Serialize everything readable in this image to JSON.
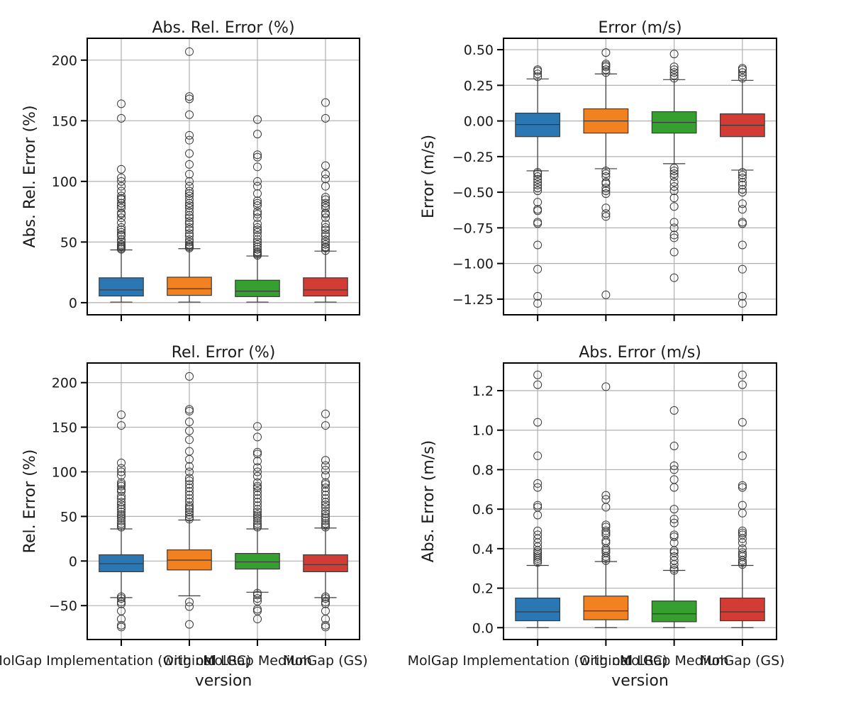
{
  "figure": {
    "xlabel": "version",
    "categories": [
      "MolGap Implementation (with old LRC)",
      "Original",
      "MolGap Medium",
      "MolGap (GS)"
    ],
    "colors": [
      "#2a77b4",
      "#f28220",
      "#35a02f",
      "#d33b35"
    ]
  },
  "chart_data": [
    {
      "type": "box",
      "title": "Abs. Rel. Error (%)",
      "ylabel": "Abs. Rel. Error (%)",
      "ylim": [
        -10,
        218
      ],
      "yticks": [
        {
          "v": 0,
          "t": "0"
        },
        {
          "v": 50,
          "t": "50"
        },
        {
          "v": 100,
          "t": "100"
        },
        {
          "v": 150,
          "t": "150"
        },
        {
          "v": 200,
          "t": "200"
        }
      ],
      "boxes": [
        {
          "whislo": 0.5,
          "q1": 5.5,
          "med": 10.5,
          "q3": 20.5,
          "whishi": 43.5,
          "fliers": [
            44,
            45,
            46,
            47,
            48,
            50,
            52,
            55,
            56,
            58,
            60,
            62,
            66,
            70,
            73,
            74,
            78,
            80,
            82,
            85,
            86,
            88,
            92,
            96,
            100,
            103,
            110,
            152,
            164
          ]
        },
        {
          "whislo": 0.5,
          "q1": 6,
          "med": 11.5,
          "q3": 21,
          "whishi": 44.5,
          "fliers": [
            45,
            46,
            47,
            48,
            50,
            52,
            55,
            57,
            60,
            62,
            65,
            67,
            70,
            72,
            75,
            78,
            80,
            82,
            85,
            88,
            90,
            92,
            96,
            100,
            106,
            114,
            123,
            134,
            138,
            155,
            168,
            170,
            207
          ]
        },
        {
          "whislo": 0.5,
          "q1": 5,
          "med": 9.5,
          "q3": 18.5,
          "whishi": 38.5,
          "fliers": [
            39,
            40,
            41,
            42,
            44,
            46,
            48,
            50,
            52,
            55,
            58,
            60,
            62,
            65,
            70,
            73,
            75,
            80,
            82,
            84,
            90,
            96,
            100,
            112,
            120,
            122,
            139,
            151
          ]
        },
        {
          "whislo": 0.5,
          "q1": 5.5,
          "med": 10.5,
          "q3": 20.5,
          "whishi": 42.5,
          "fliers": [
            43,
            45,
            46,
            48,
            50,
            52,
            55,
            57,
            60,
            62,
            65,
            70,
            73,
            74,
            78,
            80,
            82,
            85,
            87,
            96,
            102,
            106,
            113,
            152,
            165
          ]
        }
      ]
    },
    {
      "type": "box",
      "title": "Error (m/s)",
      "ylabel": "Error (m/s)",
      "ylim": [
        -1.36,
        0.58
      ],
      "yticks": [
        {
          "v": -1.25,
          "t": "−1.25"
        },
        {
          "v": -1.0,
          "t": "−1.00"
        },
        {
          "v": -0.75,
          "t": "−0.75"
        },
        {
          "v": -0.5,
          "t": "−0.50"
        },
        {
          "v": -0.25,
          "t": "−0.25"
        },
        {
          "v": 0,
          "t": "0.00"
        },
        {
          "v": 0.25,
          "t": "0.25"
        },
        {
          "v": 0.5,
          "t": "0.50"
        }
      ],
      "boxes": [
        {
          "whislo": -0.35,
          "q1": -0.11,
          "med": -0.025,
          "q3": 0.055,
          "whishi": 0.295,
          "fliers": [
            0.31,
            0.33,
            0.35,
            0.36,
            -0.36,
            -0.37,
            -0.39,
            -0.41,
            -0.43,
            -0.45,
            -0.47,
            -0.49,
            -0.57,
            -0.62,
            -0.63,
            -0.71,
            -0.72,
            -0.87,
            -1.04,
            -1.23,
            -1.28
          ]
        },
        {
          "whislo": -0.335,
          "q1": -0.085,
          "med": 0.0,
          "q3": 0.085,
          "whishi": 0.33,
          "fliers": [
            0.34,
            0.36,
            0.38,
            0.39,
            0.4,
            0.48,
            -0.35,
            -0.37,
            -0.39,
            -0.43,
            -0.44,
            -0.47,
            -0.49,
            -0.51,
            -0.61,
            -0.65,
            -0.67,
            -1.22
          ]
        },
        {
          "whislo": -0.3,
          "q1": -0.085,
          "med": -0.01,
          "q3": 0.065,
          "whishi": 0.29,
          "fliers": [
            0.3,
            0.32,
            0.34,
            0.36,
            0.38,
            0.47,
            -0.33,
            -0.35,
            -0.37,
            -0.39,
            -0.43,
            -0.46,
            -0.49,
            -0.54,
            -0.6,
            -0.71,
            -0.75,
            -0.8,
            -0.82,
            -0.92,
            -1.1
          ]
        },
        {
          "whislo": -0.345,
          "q1": -0.11,
          "med": -0.03,
          "q3": 0.05,
          "whishi": 0.285,
          "fliers": [
            0.3,
            0.32,
            0.34,
            0.36,
            0.37,
            -0.36,
            -0.38,
            -0.4,
            -0.43,
            -0.45,
            -0.48,
            -0.5,
            -0.58,
            -0.62,
            -0.71,
            -0.72,
            -0.87,
            -1.04,
            -1.23,
            -1.28
          ]
        }
      ]
    },
    {
      "type": "box",
      "title": "Rel. Error (%)",
      "ylabel": "Rel. Error (%)",
      "ylim": [
        -88,
        222
      ],
      "yticks": [
        {
          "v": -50,
          "t": "−50"
        },
        {
          "v": 0,
          "t": "0"
        },
        {
          "v": 50,
          "t": "50"
        },
        {
          "v": 100,
          "t": "100"
        },
        {
          "v": 150,
          "t": "150"
        },
        {
          "v": 200,
          "t": "200"
        }
      ],
      "boxes": [
        {
          "whislo": -41,
          "q1": -12,
          "med": -3,
          "q3": 7,
          "whishi": 36,
          "fliers": [
            38,
            40,
            42,
            45,
            48,
            50,
            52,
            55,
            58,
            60,
            63,
            66,
            70,
            73,
            78,
            80,
            84,
            86,
            88,
            96,
            100,
            104,
            110,
            152,
            164,
            -40,
            -42,
            -46,
            -48,
            -56,
            -65,
            -72,
            -74
          ]
        },
        {
          "whislo": -39,
          "q1": -10,
          "med": 1,
          "q3": 12.5,
          "whishi": 46,
          "fliers": [
            47,
            49,
            52,
            55,
            58,
            60,
            62,
            66,
            70,
            74,
            78,
            82,
            86,
            90,
            93,
            100,
            106,
            114,
            123,
            136,
            146,
            156,
            168,
            170,
            207,
            -46,
            -51,
            -71
          ]
        },
        {
          "whislo": -35,
          "q1": -9,
          "med": -1,
          "q3": 8.5,
          "whishi": 36,
          "fliers": [
            38,
            40,
            42,
            45,
            48,
            50,
            52,
            55,
            58,
            62,
            66,
            70,
            74,
            78,
            82,
            84,
            88,
            95,
            100,
            105,
            112,
            120,
            122,
            139,
            151,
            -36,
            -38,
            -42,
            -45,
            -54,
            -56,
            -65
          ]
        },
        {
          "whislo": -41,
          "q1": -12,
          "med": -4,
          "q3": 7,
          "whishi": 37,
          "fliers": [
            38,
            40,
            42,
            45,
            48,
            50,
            53,
            56,
            60,
            63,
            66,
            70,
            74,
            78,
            82,
            86,
            88,
            96,
            102,
            107,
            113,
            152,
            165,
            -40,
            -42,
            -46,
            -48,
            -56,
            -65,
            -72,
            -74
          ]
        }
      ]
    },
    {
      "type": "box",
      "title": "Abs. Error (m/s)",
      "ylabel": "Abs. Error (m/s)",
      "ylim": [
        -0.06,
        1.34
      ],
      "yticks": [
        {
          "v": 0,
          "t": "0.0"
        },
        {
          "v": 0.2,
          "t": "0.2"
        },
        {
          "v": 0.4,
          "t": "0.4"
        },
        {
          "v": 0.6,
          "t": "0.6"
        },
        {
          "v": 0.8,
          "t": "0.8"
        },
        {
          "v": 1.0,
          "t": "1.0"
        },
        {
          "v": 1.2,
          "t": "1.2"
        }
      ],
      "boxes": [
        {
          "whislo": 0.0,
          "q1": 0.035,
          "med": 0.08,
          "q3": 0.15,
          "whishi": 0.315,
          "fliers": [
            0.33,
            0.34,
            0.35,
            0.36,
            0.37,
            0.38,
            0.39,
            0.41,
            0.43,
            0.45,
            0.47,
            0.49,
            0.57,
            0.61,
            0.62,
            0.71,
            0.73,
            0.87,
            1.04,
            1.23,
            1.28
          ]
        },
        {
          "whislo": 0.0,
          "q1": 0.04,
          "med": 0.085,
          "q3": 0.16,
          "whishi": 0.335,
          "fliers": [
            0.34,
            0.35,
            0.36,
            0.38,
            0.39,
            0.4,
            0.43,
            0.44,
            0.47,
            0.48,
            0.49,
            0.51,
            0.52,
            0.61,
            0.65,
            0.67,
            1.22
          ]
        },
        {
          "whislo": 0.0,
          "q1": 0.03,
          "med": 0.07,
          "q3": 0.135,
          "whishi": 0.29,
          "fliers": [
            0.29,
            0.3,
            0.32,
            0.34,
            0.36,
            0.38,
            0.39,
            0.43,
            0.46,
            0.47,
            0.53,
            0.55,
            0.6,
            0.71,
            0.75,
            0.8,
            0.82,
            0.92,
            1.1
          ]
        },
        {
          "whislo": 0.0,
          "q1": 0.035,
          "med": 0.08,
          "q3": 0.15,
          "whishi": 0.315,
          "fliers": [
            0.32,
            0.33,
            0.34,
            0.36,
            0.37,
            0.38,
            0.4,
            0.43,
            0.45,
            0.47,
            0.48,
            0.49,
            0.58,
            0.62,
            0.71,
            0.72,
            0.87,
            1.04,
            1.23,
            1.28
          ]
        }
      ]
    }
  ]
}
